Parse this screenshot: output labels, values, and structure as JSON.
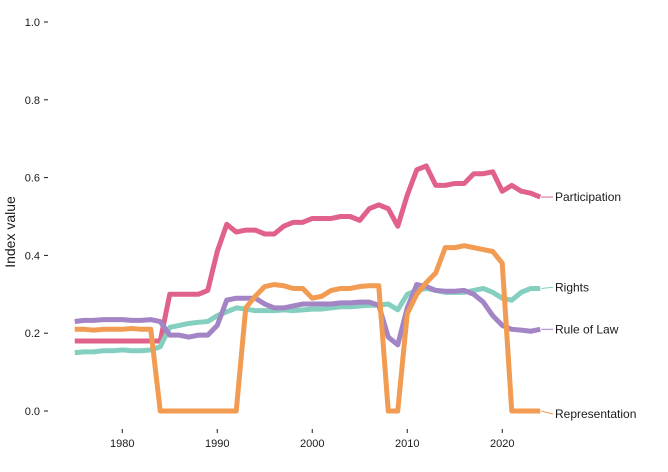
{
  "chart_data": {
    "type": "line",
    "title": "",
    "xlabel": "",
    "ylabel": "Index value",
    "xlim": [
      1974.5,
      2024.5
    ],
    "ylim": [
      0,
      1.0
    ],
    "grid": false,
    "legend": "direct labels at right end of lines",
    "x_ticks": [
      1980,
      1990,
      2000,
      2010,
      2020
    ],
    "y_ticks": [
      0.0,
      0.2,
      0.4,
      0.6,
      0.8,
      1.0
    ],
    "y_tick_labels": [
      "0.0",
      "0.2",
      "0.4",
      "0.6",
      "0.8",
      "1.0"
    ],
    "x": [
      1975,
      1976,
      1977,
      1978,
      1979,
      1980,
      1981,
      1982,
      1983,
      1984,
      1985,
      1986,
      1987,
      1988,
      1989,
      1990,
      1991,
      1992,
      1993,
      1994,
      1995,
      1996,
      1997,
      1998,
      1999,
      2000,
      2001,
      2002,
      2003,
      2004,
      2005,
      2006,
      2007,
      2008,
      2009,
      2010,
      2011,
      2012,
      2013,
      2014,
      2015,
      2016,
      2017,
      2018,
      2019,
      2020,
      2021,
      2022,
      2023,
      2024
    ],
    "series": [
      {
        "name": "Participation",
        "color": "#e0628a",
        "values": [
          0.18,
          0.18,
          0.18,
          0.18,
          0.18,
          0.18,
          0.18,
          0.18,
          0.18,
          0.18,
          0.3,
          0.3,
          0.3,
          0.3,
          0.31,
          0.41,
          0.48,
          0.46,
          0.465,
          0.465,
          0.455,
          0.455,
          0.475,
          0.485,
          0.485,
          0.495,
          0.495,
          0.495,
          0.5,
          0.5,
          0.49,
          0.52,
          0.53,
          0.52,
          0.475,
          0.555,
          0.62,
          0.63,
          0.58,
          0.58,
          0.585,
          0.585,
          0.61,
          0.61,
          0.615,
          0.565,
          0.58,
          0.565,
          0.56,
          0.55
        ]
      },
      {
        "name": "Rights",
        "color": "#84cfc0",
        "values": [
          0.15,
          0.152,
          0.152,
          0.155,
          0.155,
          0.157,
          0.155,
          0.155,
          0.157,
          0.165,
          0.215,
          0.22,
          0.225,
          0.228,
          0.23,
          0.245,
          0.255,
          0.265,
          0.262,
          0.258,
          0.258,
          0.258,
          0.26,
          0.258,
          0.26,
          0.262,
          0.262,
          0.265,
          0.268,
          0.268,
          0.27,
          0.272,
          0.272,
          0.275,
          0.26,
          0.3,
          0.31,
          0.315,
          0.31,
          0.305,
          0.305,
          0.305,
          0.31,
          0.315,
          0.305,
          0.29,
          0.285,
          0.305,
          0.315,
          0.315
        ]
      },
      {
        "name": "Rule of Law",
        "color": "#a384c4",
        "values": [
          0.23,
          0.233,
          0.233,
          0.235,
          0.235,
          0.235,
          0.233,
          0.233,
          0.235,
          0.23,
          0.195,
          0.195,
          0.19,
          0.195,
          0.195,
          0.22,
          0.285,
          0.29,
          0.29,
          0.29,
          0.275,
          0.265,
          0.265,
          0.27,
          0.275,
          0.275,
          0.275,
          0.275,
          0.278,
          0.278,
          0.28,
          0.28,
          0.272,
          0.19,
          0.17,
          0.265,
          0.325,
          0.32,
          0.31,
          0.308,
          0.308,
          0.31,
          0.3,
          0.28,
          0.245,
          0.22,
          0.21,
          0.208,
          0.205,
          0.21
        ]
      },
      {
        "name": "Representation",
        "color": "#f29b52",
        "values": [
          0.21,
          0.21,
          0.208,
          0.21,
          0.21,
          0.21,
          0.212,
          0.21,
          0.21,
          0.0,
          0.0,
          0.0,
          0.0,
          0.0,
          0.0,
          0.0,
          0.0,
          0.0,
          0.265,
          0.295,
          0.32,
          0.325,
          0.322,
          0.315,
          0.315,
          0.29,
          0.295,
          0.31,
          0.315,
          0.315,
          0.32,
          0.322,
          0.322,
          0.0,
          0.0,
          0.25,
          0.3,
          0.33,
          0.355,
          0.42,
          0.42,
          0.425,
          0.42,
          0.415,
          0.41,
          0.38,
          0.0,
          0.0,
          0.0,
          0.0
        ]
      }
    ],
    "label_positions": {
      "Participation": 0.55,
      "Rights": 0.318,
      "Rule of Law": 0.21,
      "Representation": -0.008
    }
  }
}
